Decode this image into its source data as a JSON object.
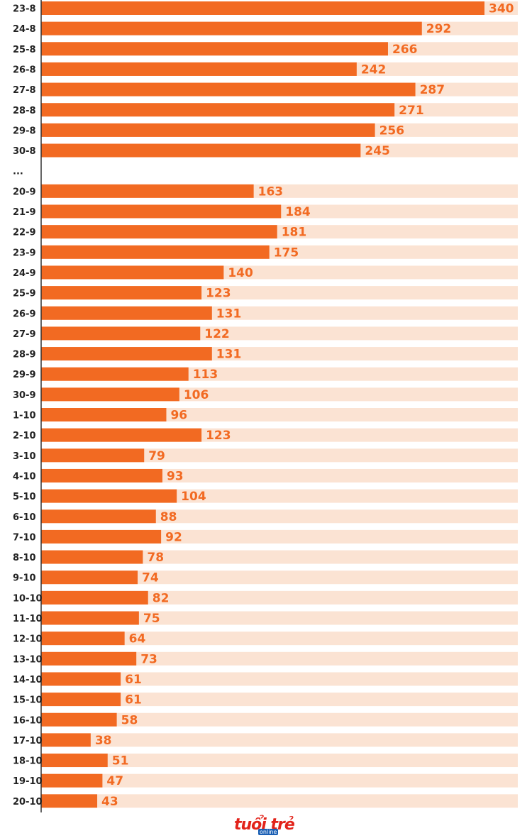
{
  "colors": {
    "bar": "#f26a22",
    "value_label": "#f26a22",
    "stripe": "#fbe3d3",
    "axis": "#333333",
    "text": "#222222"
  },
  "brand": {
    "logo_text": "tuổi trẻ",
    "logo_sub": "online"
  },
  "chart_data": {
    "type": "bar",
    "orientation": "horizontal",
    "categories": [
      "23-8",
      "24-8",
      "25-8",
      "26-8",
      "27-8",
      "28-8",
      "29-8",
      "30-8",
      "...",
      "20-9",
      "21-9",
      "22-9",
      "23-9",
      "24-9",
      "25-9",
      "26-9",
      "27-9",
      "28-9",
      "29-9",
      "30-9",
      "1-10",
      "2-10",
      "3-10",
      "4-10",
      "5-10",
      "6-10",
      "7-10",
      "8-10",
      "9-10",
      "10-10",
      "11-10",
      "12-10",
      "13-10",
      "14-10",
      "15-10",
      "16-10",
      "17-10",
      "18-10",
      "19-10",
      "20-10"
    ],
    "values": [
      340,
      292,
      266,
      242,
      287,
      271,
      256,
      245,
      null,
      163,
      184,
      181,
      175,
      140,
      123,
      131,
      122,
      131,
      113,
      106,
      96,
      123,
      79,
      93,
      104,
      88,
      92,
      78,
      74,
      82,
      75,
      64,
      73,
      61,
      61,
      58,
      38,
      51,
      47,
      43
    ],
    "xlim": [
      0,
      340
    ],
    "title": "",
    "xlabel": "",
    "ylabel": "",
    "grid": false,
    "legend": "none"
  }
}
